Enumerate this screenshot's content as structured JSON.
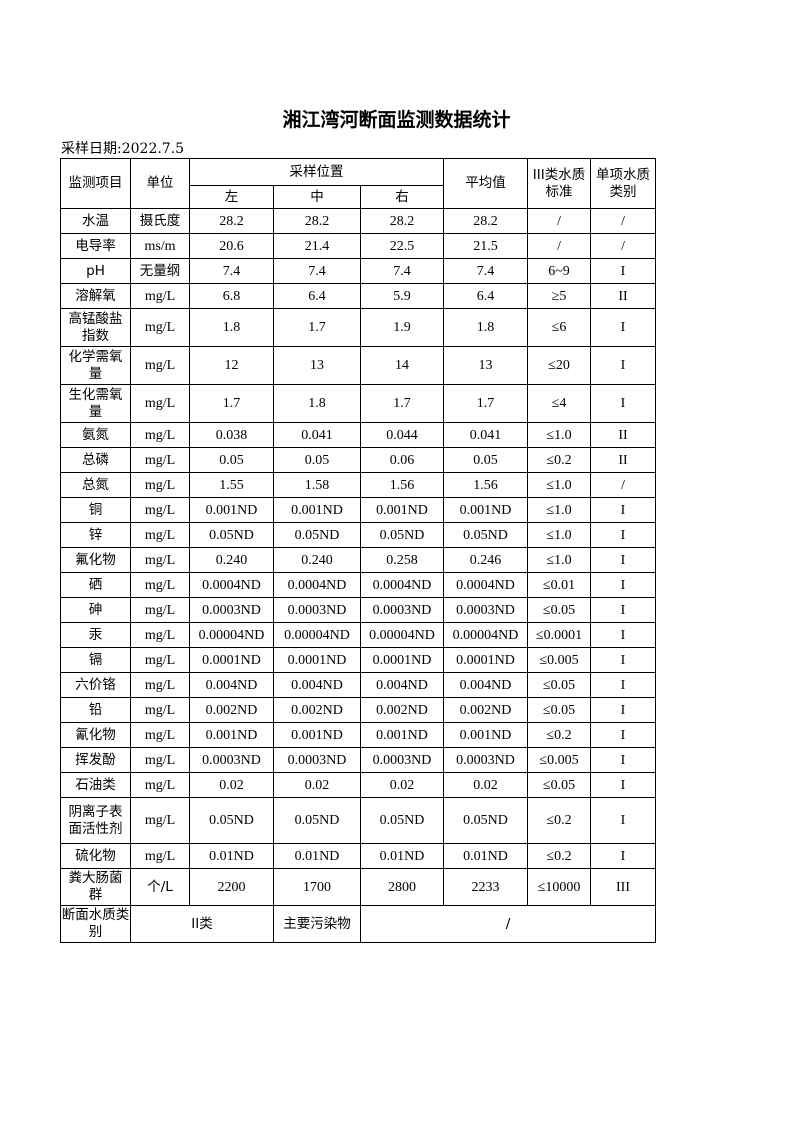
{
  "title": "湘江湾河断面监测数据统计",
  "sampling_date": "采样日期:2022.7.5",
  "header": {
    "item": "监测项目",
    "unit": "单位",
    "location": "采样位置",
    "left": "左",
    "middle": "中",
    "right": "右",
    "average": "平均值",
    "standard": "III类水质标准",
    "category": "单项水质类别"
  },
  "rows": [
    {
      "item": "水温",
      "unit": "摄氏度",
      "left": "28.2",
      "middle": "28.2",
      "right": "28.2",
      "avg": "28.2",
      "std": "/",
      "cat": "/"
    },
    {
      "item": "电导率",
      "unit": "ms/m",
      "left": "20.6",
      "middle": "21.4",
      "right": "22.5",
      "avg": "21.5",
      "std": "/",
      "cat": "/"
    },
    {
      "item": "pH",
      "unit": "无量纲",
      "left": "7.4",
      "middle": "7.4",
      "right": "7.4",
      "avg": "7.4",
      "std": "6~9",
      "cat": "I"
    },
    {
      "item": "溶解氧",
      "unit": "mg/L",
      "left": "6.8",
      "middle": "6.4",
      "right": "5.9",
      "avg": "6.4",
      "std": "≥5",
      "cat": "II"
    },
    {
      "item": "高锰酸盐指数",
      "unit": "mg/L",
      "left": "1.8",
      "middle": "1.7",
      "right": "1.9",
      "avg": "1.8",
      "std": "≤6",
      "cat": "I"
    },
    {
      "item": "化学需氧量",
      "unit": "mg/L",
      "left": "12",
      "middle": "13",
      "right": "14",
      "avg": "13",
      "std": "≤20",
      "cat": "I"
    },
    {
      "item": "生化需氧量",
      "unit": "mg/L",
      "left": "1.7",
      "middle": "1.8",
      "right": "1.7",
      "avg": "1.7",
      "std": "≤4",
      "cat": "I"
    },
    {
      "item": "氨氮",
      "unit": "mg/L",
      "left": "0.038",
      "middle": "0.041",
      "right": "0.044",
      "avg": "0.041",
      "std": "≤1.0",
      "cat": "II"
    },
    {
      "item": "总磷",
      "unit": "mg/L",
      "left": "0.05",
      "middle": "0.05",
      "right": "0.06",
      "avg": "0.05",
      "std": "≤0.2",
      "cat": "II"
    },
    {
      "item": "总氮",
      "unit": "mg/L",
      "left": "1.55",
      "middle": "1.58",
      "right": "1.56",
      "avg": "1.56",
      "std": "≤1.0",
      "cat": "/"
    },
    {
      "item": "铜",
      "unit": "mg/L",
      "left": "0.001ND",
      "middle": "0.001ND",
      "right": "0.001ND",
      "avg": "0.001ND",
      "std": "≤1.0",
      "cat": "I"
    },
    {
      "item": "锌",
      "unit": "mg/L",
      "left": "0.05ND",
      "middle": "0.05ND",
      "right": "0.05ND",
      "avg": "0.05ND",
      "std": "≤1.0",
      "cat": "I"
    },
    {
      "item": "氟化物",
      "unit": "mg/L",
      "left": "0.240",
      "middle": "0.240",
      "right": "0.258",
      "avg": "0.246",
      "std": "≤1.0",
      "cat": "I"
    },
    {
      "item": "硒",
      "unit": "mg/L",
      "left": "0.0004ND",
      "middle": "0.0004ND",
      "right": "0.0004ND",
      "avg": "0.0004ND",
      "std": "≤0.01",
      "cat": "I"
    },
    {
      "item": "砷",
      "unit": "mg/L",
      "left": "0.0003ND",
      "middle": "0.0003ND",
      "right": "0.0003ND",
      "avg": "0.0003ND",
      "std": "≤0.05",
      "cat": "I"
    },
    {
      "item": "汞",
      "unit": "mg/L",
      "left": "0.00004ND",
      "middle": "0.00004ND",
      "right": "0.00004ND",
      "avg": "0.00004ND",
      "std": "≤0.0001",
      "cat": "I"
    },
    {
      "item": "镉",
      "unit": "mg/L",
      "left": "0.0001ND",
      "middle": "0.0001ND",
      "right": "0.0001ND",
      "avg": "0.0001ND",
      "std": "≤0.005",
      "cat": "I"
    },
    {
      "item": "六价铬",
      "unit": "mg/L",
      "left": "0.004ND",
      "middle": "0.004ND",
      "right": "0.004ND",
      "avg": "0.004ND",
      "std": "≤0.05",
      "cat": "I"
    },
    {
      "item": "铅",
      "unit": "mg/L",
      "left": "0.002ND",
      "middle": "0.002ND",
      "right": "0.002ND",
      "avg": "0.002ND",
      "std": "≤0.05",
      "cat": "I"
    },
    {
      "item": "氰化物",
      "unit": "mg/L",
      "left": "0.001ND",
      "middle": "0.001ND",
      "right": "0.001ND",
      "avg": "0.001ND",
      "std": "≤0.2",
      "cat": "I"
    },
    {
      "item": "挥发酚",
      "unit": "mg/L",
      "left": "0.0003ND",
      "middle": "0.0003ND",
      "right": "0.0003ND",
      "avg": "0.0003ND",
      "std": "≤0.005",
      "cat": "I"
    },
    {
      "item": "石油类",
      "unit": "mg/L",
      "left": "0.02",
      "middle": "0.02",
      "right": "0.02",
      "avg": "0.02",
      "std": "≤0.05",
      "cat": "I"
    },
    {
      "item": "阴离子表面活性剂",
      "unit": "mg/L",
      "left": "0.05ND",
      "middle": "0.05ND",
      "right": "0.05ND",
      "avg": "0.05ND",
      "std": "≤0.2",
      "cat": "I"
    },
    {
      "item": "硫化物",
      "unit": "mg/L",
      "left": "0.01ND",
      "middle": "0.01ND",
      "right": "0.01ND",
      "avg": "0.01ND",
      "std": "≤0.2",
      "cat": "I"
    },
    {
      "item": "粪大肠菌群",
      "unit": "个/L",
      "left": "2200",
      "middle": "1700",
      "right": "2800",
      "avg": "2233",
      "std": "≤10000",
      "cat": "III"
    }
  ],
  "footer": {
    "label": "断面水质类别",
    "value": "II类",
    "pollutant_label": "主要污染物",
    "pollutant_value": "/"
  }
}
